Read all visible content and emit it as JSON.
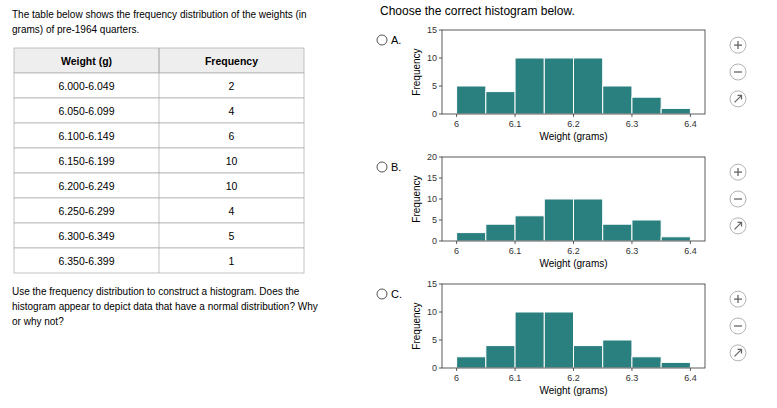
{
  "chart_data": [
    {
      "type": "table",
      "title": "The table below shows the frequency distribution of the weights (in\ngrams) of pre-1964 quarters.",
      "xlabel": "Weight (g)",
      "ylabel": "Frequency",
      "categories": [
        "6.000-6.049",
        "6.050-6.099",
        "6.100-6.149",
        "6.150-6.199",
        "6.200-6.249",
        "6.250-6.299",
        "6.300-6.349",
        "6.350-6.399"
      ],
      "values": [
        2,
        4,
        6,
        10,
        10,
        4,
        5,
        1
      ],
      "annotations": [
        "Use the frequency distribution to construct a histogram. Does the\nhistogram appear to depict data that have a normal distribution? Why\nor why not?"
      ]
    },
    {
      "type": "histogram",
      "title": "A.",
      "annotations": [
        "Choose the correct histogram below."
      ],
      "xlabel": "Weight (grams)",
      "ylabel": "Frequency",
      "bins": [
        6.0,
        6.05,
        6.1,
        6.15,
        6.2,
        6.25,
        6.3,
        6.35,
        6.4
      ],
      "values": [
        5,
        4,
        10,
        10,
        10,
        5,
        3,
        1
      ],
      "color": "#2a7f7f",
      "xlim": [
        5.975,
        6.425
      ],
      "xticks": [
        6,
        6.1,
        6.2,
        6.3,
        6.4
      ],
      "ylim": [
        0,
        15
      ],
      "yticks": [
        0,
        5,
        10,
        15
      ]
    },
    {
      "type": "histogram",
      "title": "B.",
      "xlabel": "Weight (grams)",
      "ylabel": "Frequency",
      "bins": [
        6.0,
        6.05,
        6.1,
        6.15,
        6.2,
        6.25,
        6.3,
        6.35,
        6.4
      ],
      "values": [
        2,
        4,
        6,
        10,
        10,
        4,
        5,
        1
      ],
      "color": "#2a7f7f",
      "xlim": [
        5.975,
        6.425
      ],
      "xticks": [
        6,
        6.1,
        6.2,
        6.3,
        6.4
      ],
      "ylim": [
        0,
        20
      ],
      "yticks": [
        0,
        5,
        10,
        15,
        20
      ]
    },
    {
      "type": "histogram",
      "title": "C.",
      "xlabel": "Weight (grams)",
      "ylabel": "Frequency",
      "bins": [
        6.0,
        6.05,
        6.1,
        6.15,
        6.2,
        6.25,
        6.3,
        6.35,
        6.4
      ],
      "values": [
        2,
        4,
        10,
        10,
        4,
        5,
        2,
        1
      ],
      "color": "#2a7f7f",
      "xlim": [
        5.975,
        6.425
      ],
      "xticks": [
        6,
        6.1,
        6.2,
        6.3,
        6.4
      ],
      "ylim": [
        0,
        15
      ],
      "yticks": [
        0,
        5,
        10,
        15
      ]
    }
  ]
}
